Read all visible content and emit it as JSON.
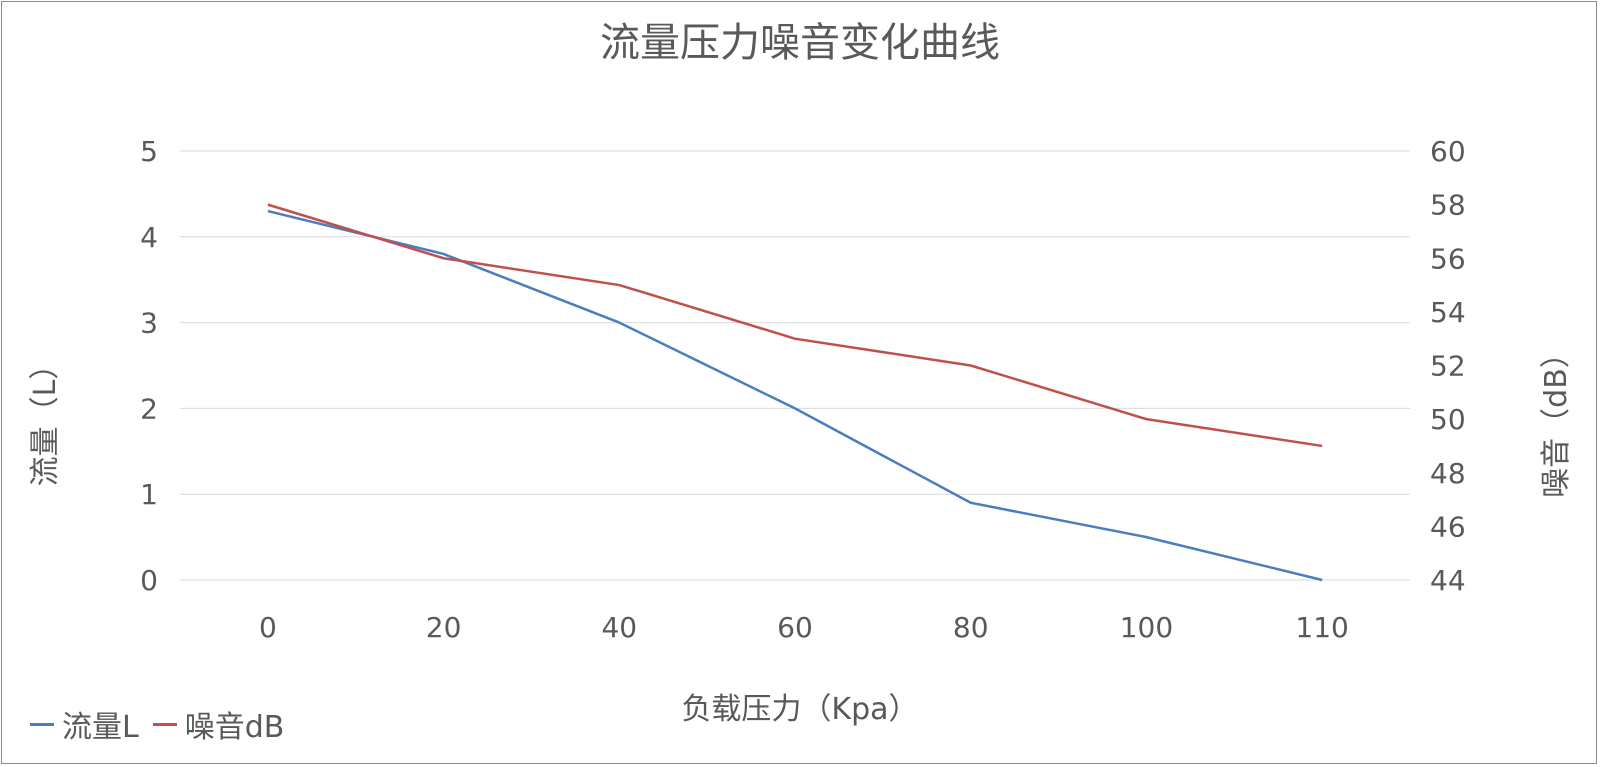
{
  "chart_data": {
    "type": "line",
    "title": "流量压力噪音变化曲线",
    "xlabel": "负载压力（Kpa）",
    "ylabel_left": "流量（L）",
    "ylabel_right": "噪音（dB）",
    "categories": [
      "0",
      "20",
      "40",
      "60",
      "80",
      "100",
      "110"
    ],
    "y_left_range": [
      0,
      5
    ],
    "y_left_ticks": [
      "0",
      "1",
      "2",
      "3",
      "4",
      "5"
    ],
    "y_right_range": [
      44,
      60
    ],
    "y_right_ticks": [
      "44",
      "46",
      "48",
      "50",
      "52",
      "54",
      "56",
      "58",
      "60"
    ],
    "grid": true,
    "legend_position": "bottom-left",
    "series": [
      {
        "name": "流量L",
        "axis": "left",
        "color": "#4a7ebf",
        "values": [
          4.3,
          3.8,
          3.0,
          2.0,
          0.9,
          0.5,
          0.0
        ]
      },
      {
        "name": "噪音dB",
        "axis": "right",
        "color": "#c0504d",
        "values": [
          58,
          56,
          55,
          53,
          52,
          50,
          49
        ]
      }
    ]
  }
}
